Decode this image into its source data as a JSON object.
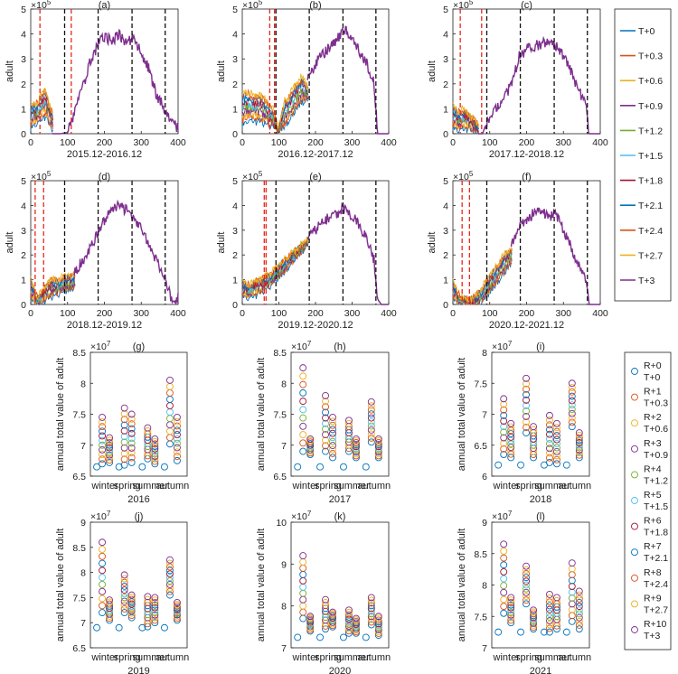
{
  "colors": [
    "#0072BD",
    "#D95319",
    "#EDB120",
    "#7E2F8E",
    "#77AC30",
    "#4DBEEE",
    "#A2142F",
    "#0072BD",
    "#D95319",
    "#EDB120",
    "#7E2F8E"
  ],
  "chart_data": [
    {
      "panel": "(a)",
      "type": "line",
      "title": "(a)",
      "xlabel": "2015.12-2016.12",
      "ylabel": "adult",
      "exponent": "×10^5",
      "ylim": [
        0,
        5
      ],
      "xlim": [
        0,
        400
      ],
      "xticks": [
        0,
        100,
        200,
        300,
        400
      ],
      "yticks": [
        0,
        1,
        2,
        3,
        4,
        5
      ],
      "red_lines": [
        25,
        110
      ],
      "black_lines": [
        92,
        183,
        275,
        365
      ],
      "pre_phase": {
        "start": 0,
        "end": 60,
        "top_values": [
          1.1,
          1.2,
          1.3,
          1.6,
          1.8,
          1.2,
          0.8
        ],
        "bottom_values": [
          0.3,
          0.4,
          0.5,
          0.6,
          0.7,
          0.4,
          0.2
        ]
      },
      "common_curve": {
        "x": [
          0,
          80,
          100,
          110,
          140,
          160,
          180,
          200,
          220,
          240,
          260,
          280,
          300,
          320,
          340,
          360,
          380,
          400
        ],
        "y": [
          0,
          0,
          0.05,
          0.4,
          1.8,
          2.8,
          3.5,
          3.9,
          3.7,
          4.0,
          3.6,
          3.9,
          3.2,
          2.6,
          1.6,
          1.1,
          0.6,
          0.2
        ]
      }
    },
    {
      "panel": "(b)",
      "type": "line",
      "title": "(b)",
      "xlabel": "2016.12-2017.12",
      "ylabel": "adult",
      "exponent": "×10^5",
      "ylim": [
        0,
        5
      ],
      "xlim": [
        0,
        400
      ],
      "xticks": [
        0,
        100,
        200,
        300,
        400
      ],
      "yticks": [
        0,
        1,
        2,
        3,
        4,
        5
      ],
      "red_lines": [
        75,
        88
      ],
      "black_lines": [
        92,
        183,
        275,
        365
      ],
      "pre_phase": {
        "start": 0,
        "end": 180,
        "top_values": [
          1.6,
          1.7,
          1.5,
          1.6,
          1.3,
          1.1,
          0.2,
          1.3,
          1.6,
          2.0,
          2.3,
          1.8
        ],
        "bottom_values": [
          0.4,
          0.6,
          0.5,
          0.5,
          0.4,
          0.3,
          0.1,
          0.3,
          0.6,
          1.0,
          1.3,
          1.4
        ]
      },
      "common_curve": {
        "x": [
          0,
          180,
          200,
          220,
          240,
          260,
          280,
          300,
          320,
          340,
          360,
          370,
          400
        ],
        "y": [
          0,
          2.2,
          2.8,
          3.2,
          3.5,
          3.8,
          4.2,
          3.7,
          3.3,
          2.8,
          2.0,
          0,
          0
        ]
      }
    },
    {
      "panel": "(c)",
      "type": "line",
      "title": "(c)",
      "xlabel": "2017.12-2018.12",
      "ylabel": "adult",
      "exponent": "×10^5",
      "ylim": [
        0,
        5
      ],
      "xlim": [
        0,
        400
      ],
      "xticks": [
        0,
        100,
        200,
        300,
        400
      ],
      "yticks": [
        0,
        1,
        2,
        3,
        4,
        5
      ],
      "red_lines": [
        20,
        78
      ],
      "black_lines": [
        92,
        183,
        275,
        365
      ],
      "pre_phase": {
        "start": 0,
        "end": 70,
        "top_values": [
          1.1,
          0.9,
          1.0,
          0.8,
          0.6,
          0.3
        ],
        "bottom_values": [
          0.3,
          0.2,
          0.2,
          0.2,
          0.1,
          0.0
        ]
      },
      "common_curve": {
        "x": [
          0,
          80,
          100,
          120,
          140,
          160,
          180,
          200,
          220,
          240,
          260,
          280,
          300,
          320,
          340,
          360,
          370,
          380
        ],
        "y": [
          0,
          0,
          0.7,
          1.0,
          1.5,
          2.0,
          3.1,
          3.4,
          3.5,
          3.6,
          3.7,
          3.5,
          3.1,
          2.5,
          1.8,
          1.2,
          0,
          0
        ]
      }
    },
    {
      "panel": "(d)",
      "type": "line",
      "title": "(d)",
      "xlabel": "2018.12-2019.12",
      "ylabel": "adult",
      "exponent": "×10^5",
      "ylim": [
        0,
        5
      ],
      "xlim": [
        0,
        400
      ],
      "xticks": [
        0,
        100,
        200,
        300,
        400
      ],
      "yticks": [
        0,
        1,
        2,
        3,
        4,
        5
      ],
      "red_lines": [
        12,
        35
      ],
      "black_lines": [
        92,
        183,
        275,
        365
      ],
      "pre_phase": {
        "start": 0,
        "end": 120,
        "top_values": [
          1.0,
          0.3,
          0.6,
          1.0,
          1.0,
          1.1,
          1.2,
          1.2
        ],
        "bottom_values": [
          0.3,
          0.0,
          0.1,
          0.3,
          0.4,
          0.5,
          0.6,
          0.7
        ]
      },
      "common_curve": {
        "x": [
          0,
          120,
          140,
          160,
          180,
          200,
          220,
          240,
          260,
          280,
          300,
          320,
          340,
          360,
          380,
          390,
          400
        ],
        "y": [
          0,
          1.3,
          1.8,
          2.2,
          2.8,
          3.4,
          3.8,
          4.0,
          3.8,
          3.5,
          3.0,
          2.4,
          1.8,
          1.2,
          0.3,
          0.1,
          0.3
        ]
      }
    },
    {
      "panel": "(e)",
      "type": "line",
      "title": "(e)",
      "xlabel": "2019.12-2020.12",
      "ylabel": "adult",
      "exponent": "×10^5",
      "ylim": [
        0,
        5
      ],
      "xlim": [
        0,
        400
      ],
      "xticks": [
        0,
        100,
        200,
        300,
        400
      ],
      "yticks": [
        0,
        1,
        2,
        3,
        4,
        5
      ],
      "red_lines": [
        60,
        65
      ],
      "black_lines": [
        92,
        183,
        275,
        365
      ],
      "pre_phase": {
        "start": 0,
        "end": 180,
        "top_values": [
          0.9,
          0.8,
          1.0,
          1.1,
          1.3,
          1.6,
          1.9,
          2.1,
          2.4,
          2.6
        ],
        "bottom_values": [
          0.4,
          0.3,
          0.4,
          0.6,
          0.8,
          1.1,
          1.4,
          1.8,
          2.1,
          2.5
        ]
      },
      "common_curve": {
        "x": [
          0,
          180,
          200,
          220,
          240,
          260,
          280,
          300,
          320,
          340,
          360,
          370,
          380
        ],
        "y": [
          0,
          2.7,
          3.0,
          3.3,
          3.6,
          3.7,
          3.9,
          3.6,
          3.2,
          2.6,
          1.8,
          0.2,
          0
        ]
      }
    },
    {
      "panel": "(f)",
      "type": "line",
      "title": "(f)",
      "xlabel": "2020.12-2021.12",
      "ylabel": "adult",
      "exponent": "×10^5",
      "ylim": [
        0,
        5
      ],
      "xlim": [
        0,
        400
      ],
      "xticks": [
        0,
        100,
        200,
        300,
        400
      ],
      "yticks": [
        0,
        1,
        2,
        3,
        4,
        5
      ],
      "red_lines": [
        25,
        45
      ],
      "black_lines": [
        92,
        183,
        275,
        365
      ],
      "pre_phase": {
        "start": 0,
        "end": 160,
        "top_values": [
          0.9,
          0.3,
          0.2,
          0.3,
          0.7,
          1.2,
          1.6,
          2.0,
          2.3
        ],
        "bottom_values": [
          0.3,
          0.0,
          0.0,
          0.0,
          0.1,
          0.5,
          0.9,
          1.3,
          1.7
        ]
      },
      "common_curve": {
        "x": [
          0,
          160,
          180,
          200,
          220,
          240,
          260,
          280,
          300,
          320,
          340,
          360,
          370,
          380,
          400
        ],
        "y": [
          0,
          2.5,
          3.2,
          3.4,
          3.7,
          3.8,
          3.5,
          3.7,
          3.0,
          2.4,
          1.6,
          1.0,
          0,
          0,
          0
        ]
      }
    },
    {
      "panel": "(g)",
      "type": "scatter",
      "title": "(g)",
      "xlabel": "2016",
      "ylabel": "annual total value of adult",
      "exponent": "×10^7",
      "ylim": [
        6.5,
        8.5
      ],
      "yticks": [
        6.5,
        7,
        7.5,
        8,
        8.5
      ],
      "categories": [
        "winter",
        "spring",
        "summer",
        "autumn"
      ],
      "baseline": [
        6.65,
        6.65,
        6.65,
        6.65
      ],
      "R_series": {
        "base": [
          6.7,
          6.68,
          6.78,
          7.02
        ],
        "top": [
          7.45,
          7.6,
          7.28,
          8.05
        ]
      },
      "T_series": {
        "base": [
          6.72,
          6.72,
          6.7,
          6.75
        ],
        "top": [
          7.12,
          7.5,
          7.1,
          7.45
        ]
      }
    },
    {
      "panel": "(h)",
      "type": "scatter",
      "title": "(h)",
      "xlabel": "2017",
      "ylabel": "annual total value of adult",
      "exponent": "×10^7",
      "ylim": [
        6.5,
        8.5
      ],
      "yticks": [
        6.5,
        7,
        7.5,
        8,
        8.5
      ],
      "categories": [
        "winter",
        "spring",
        "summer",
        "autumn"
      ],
      "baseline": [
        6.65,
        6.65,
        6.65,
        6.65
      ],
      "R_series": {
        "base": [
          6.9,
          6.9,
          6.9,
          7.05
        ],
        "top": [
          8.25,
          7.8,
          7.4,
          7.7
        ]
      },
      "T_series": {
        "base": [
          6.85,
          6.8,
          6.8,
          6.8
        ],
        "top": [
          7.1,
          7.45,
          7.1,
          7.1
        ]
      }
    },
    {
      "panel": "(i)",
      "type": "scatter",
      "title": "(i)",
      "xlabel": "2018",
      "ylabel": "annual total value of adult",
      "exponent": "×10^7",
      "ylim": [
        6,
        8
      ],
      "yticks": [
        6,
        6.5,
        7,
        7.5,
        8
      ],
      "categories": [
        "winter",
        "spring",
        "summer",
        "autumn"
      ],
      "baseline": [
        6.18,
        6.18,
        6.18,
        6.18
      ],
      "R_series": {
        "base": [
          6.35,
          6.7,
          6.22,
          6.8
        ],
        "top": [
          7.25,
          7.58,
          6.98,
          7.5
        ]
      },
      "T_series": {
        "base": [
          6.3,
          6.3,
          6.2,
          6.3
        ],
        "top": [
          6.85,
          6.8,
          6.85,
          6.7
        ]
      }
    },
    {
      "panel": "(j)",
      "type": "scatter",
      "title": "(j)",
      "xlabel": "2019",
      "ylabel": "annual total value of adult",
      "exponent": "×10^7",
      "ylim": [
        6.5,
        9
      ],
      "yticks": [
        6.5,
        7,
        7.5,
        8,
        8.5,
        9
      ],
      "categories": [
        "winter",
        "spring",
        "summer",
        "autumn"
      ],
      "baseline": [
        6.9,
        6.9,
        6.9,
        6.9
      ],
      "R_series": {
        "base": [
          7.2,
          7.2,
          6.92,
          7.55
        ],
        "top": [
          8.6,
          7.95,
          7.52,
          8.25
        ]
      },
      "T_series": {
        "base": [
          7.05,
          7.1,
          7.0,
          7.05
        ],
        "top": [
          7.45,
          7.55,
          7.5,
          7.4
        ]
      }
    },
    {
      "panel": "(k)",
      "type": "scatter",
      "title": "(k)",
      "xlabel": "2020",
      "ylabel": "annual total value of adult",
      "exponent": "×10^7",
      "ylim": [
        7,
        10
      ],
      "yticks": [
        7,
        8,
        9,
        10
      ],
      "categories": [
        "winter",
        "spring",
        "summer",
        "autumn"
      ],
      "baseline": [
        7.25,
        7.25,
        7.25,
        7.25
      ],
      "R_series": {
        "base": [
          7.7,
          7.45,
          7.35,
          7.55
        ],
        "top": [
          9.2,
          8.15,
          7.9,
          8.2
        ]
      },
      "T_series": {
        "base": [
          7.4,
          7.5,
          7.35,
          7.3
        ],
        "top": [
          7.75,
          7.85,
          7.7,
          7.75
        ]
      }
    },
    {
      "panel": "(l)",
      "type": "scatter",
      "title": "(l)",
      "xlabel": "2021",
      "ylabel": "annual total value of adult",
      "exponent": "×10^7",
      "ylim": [
        7,
        9
      ],
      "yticks": [
        7,
        7.5,
        8,
        8.5,
        9
      ],
      "categories": [
        "winter",
        "spring",
        "summer",
        "autumn"
      ],
      "baseline": [
        7.25,
        7.25,
        7.25,
        7.25
      ],
      "R_series": {
        "base": [
          7.55,
          7.7,
          7.25,
          7.42
        ],
        "top": [
          8.65,
          8.3,
          7.85,
          8.35
        ]
      },
      "T_series": {
        "base": [
          7.4,
          7.3,
          7.3,
          7.3
        ],
        "top": [
          7.8,
          7.6,
          7.8,
          7.9
        ]
      }
    }
  ],
  "legend_top": [
    "T+0",
    "T+0.3",
    "T+0.6",
    "T+0.9",
    "T+1.2",
    "T+1.5",
    "T+1.8",
    "T+2.1",
    "T+2.4",
    "T+2.7",
    "T+3"
  ],
  "legend_bottom": [
    [
      "R+0",
      "T+0"
    ],
    [
      "R+1",
      "T+0.3"
    ],
    [
      "R+2",
      "T+0.6"
    ],
    [
      "R+3",
      "T+0.9"
    ],
    [
      "R+4",
      "T+1.2"
    ],
    [
      "R+5",
      "T+1.5"
    ],
    [
      "R+6",
      "T+1.8"
    ],
    [
      "R+7",
      "T+2.1"
    ],
    [
      "R+8",
      "T+2.4"
    ],
    [
      "R+9",
      "T+2.7"
    ],
    [
      "R+10",
      "T+3"
    ]
  ]
}
